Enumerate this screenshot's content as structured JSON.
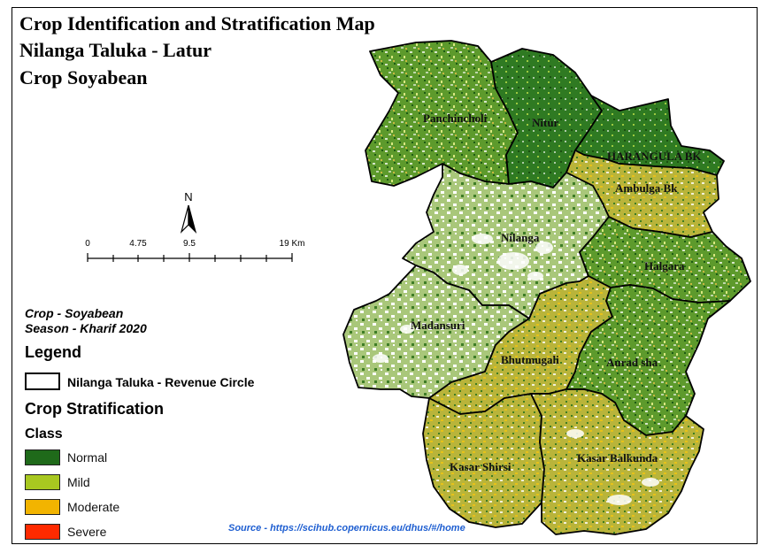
{
  "title": {
    "line1": "Crop Identification and Stratification Map",
    "line2": "Nilanga Taluka - Latur",
    "line3": "Crop Soyabean"
  },
  "north_arrow": {
    "label": "N"
  },
  "scale_bar": {
    "ticks": [
      "0",
      "4.75",
      "9.5",
      "19 Km"
    ]
  },
  "crop_info": {
    "crop": "Crop -  Soyabean",
    "season": "Season  -  Kharif 2020"
  },
  "legend": {
    "title": "Legend",
    "boundary_label": "Nilanga Taluka - Revenue Circle",
    "stratification_title": "Crop Stratification",
    "class_title": "Class",
    "classes": [
      {
        "label": "Normal",
        "color": "#1f6a1a"
      },
      {
        "label": "Mild",
        "color": "#a8c820"
      },
      {
        "label": "Moderate",
        "color": "#f2b400"
      },
      {
        "label": "Severe",
        "color": "#ff2a00"
      }
    ]
  },
  "source": "Source - https://scihub.copernicus.eu/dhus/#/home",
  "map": {
    "circles": [
      "Panchincholi",
      "Nitur",
      "HARANGULA BK",
      "Ambulga Bk",
      "Nilanga",
      "Halgara",
      "Madansuri",
      "Bhutmugali",
      "Aurad sha",
      "Kasar Shirsi",
      "Kasar Balkunda"
    ]
  }
}
